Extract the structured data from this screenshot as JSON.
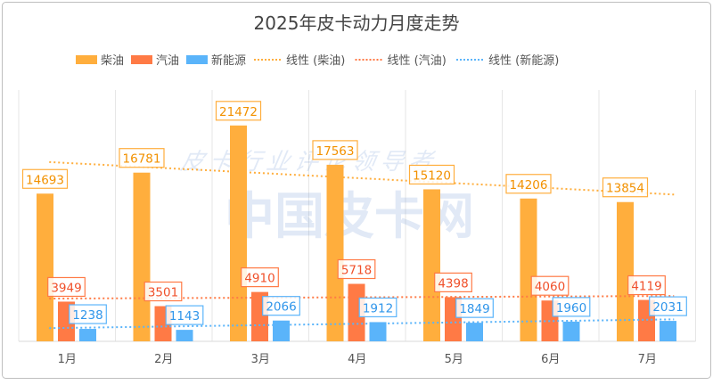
{
  "chart_data": {
    "type": "bar",
    "title": "2025年皮卡动力月度走势",
    "categories": [
      "1月",
      "2月",
      "3月",
      "4月",
      "5月",
      "6月",
      "7月"
    ],
    "series": [
      {
        "name": "柴油",
        "color": "#FFAE3D",
        "values": [
          14693,
          16781,
          21472,
          17563,
          15120,
          14206,
          13854
        ]
      },
      {
        "name": "汽油",
        "color": "#FF7A45",
        "values": [
          3949,
          3501,
          4910,
          5718,
          4398,
          4060,
          4119
        ]
      },
      {
        "name": "新能源",
        "color": "#5AB4FA",
        "values": [
          1238,
          1143,
          2066,
          1912,
          1849,
          1960,
          2031
        ]
      }
    ],
    "trendlines": [
      {
        "name": "线性 (柴油)",
        "series": "柴油",
        "color": "#FFAE3D"
      },
      {
        "name": "线性 (汽油)",
        "series": "汽油",
        "color": "#FF7A45"
      },
      {
        "name": "线性 (新能源)",
        "series": "新能源",
        "color": "#5AB4FA"
      }
    ],
    "label_colors": [
      "#F29100",
      "#F0502A",
      "#2F95EA"
    ],
    "ylim": [
      0,
      25000
    ],
    "grid": "vertical",
    "legend": "top-center",
    "data_labels": true
  },
  "watermark": {
    "line1": "皮卡行业评论领导者",
    "line2": "中国皮卡网"
  }
}
